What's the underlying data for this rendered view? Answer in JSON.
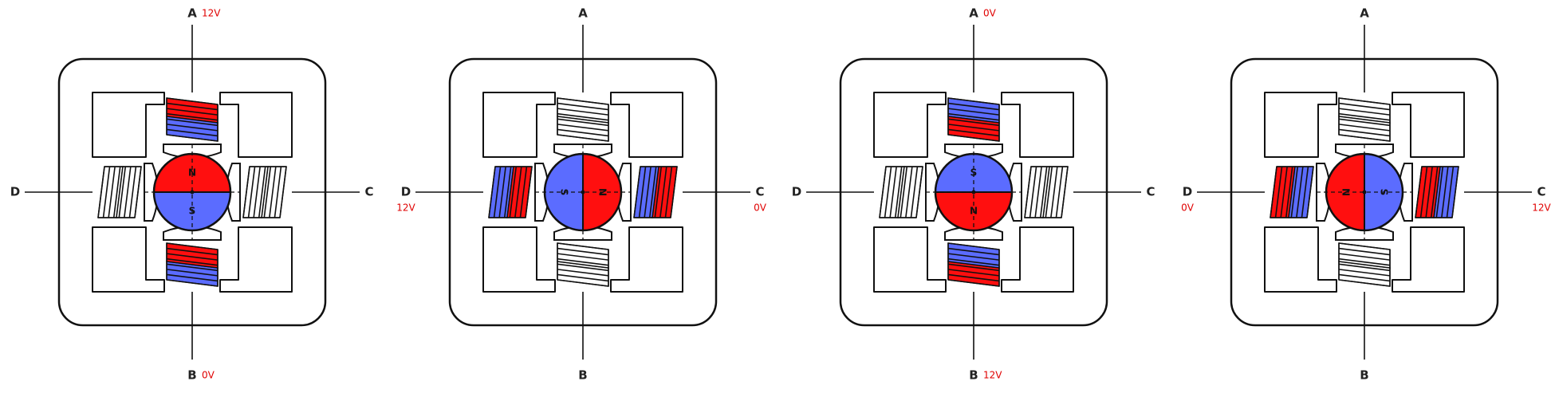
{
  "colors": {
    "energized_north": "#ff0f0f",
    "energized_south": "#5b6cff",
    "outline": "#111111",
    "voltage_text": "#e00000"
  },
  "stages": [
    {
      "terminals": {
        "A": "A",
        "B": "B",
        "C": "C",
        "D": "D"
      },
      "voltages": {
        "A": "12V",
        "B": "0V",
        "C": "",
        "D": ""
      },
      "energized_axis": "vertical",
      "rotor": {
        "orientation": "vertical",
        "red_side": "top",
        "red_pole_label": "N",
        "blue_pole_label": "S"
      },
      "coils": {
        "top": "red-outer",
        "bottom": "blue-outer",
        "left": "plain",
        "right": "plain"
      }
    },
    {
      "terminals": {
        "A": "A",
        "B": "B",
        "C": "C",
        "D": "D"
      },
      "voltages": {
        "A": "",
        "B": "",
        "C": "0V",
        "D": "12V"
      },
      "energized_axis": "horizontal",
      "rotor": {
        "orientation": "horizontal",
        "red_side": "right",
        "red_pole_label": "N",
        "blue_pole_label": "S"
      },
      "coils": {
        "top": "plain",
        "bottom": "plain",
        "left": "red-inner",
        "right": "red-outer"
      }
    },
    {
      "terminals": {
        "A": "A",
        "B": "B",
        "C": "C",
        "D": "D"
      },
      "voltages": {
        "A": "0V",
        "B": "12V",
        "C": "",
        "D": ""
      },
      "energized_axis": "vertical",
      "rotor": {
        "orientation": "vertical",
        "red_side": "bottom",
        "red_pole_label": "N",
        "blue_pole_label": "S"
      },
      "coils": {
        "top": "blue-outer",
        "bottom": "red-outer",
        "left": "plain",
        "right": "plain"
      }
    },
    {
      "terminals": {
        "A": "A",
        "B": "B",
        "C": "C",
        "D": "D"
      },
      "voltages": {
        "A": "",
        "B": "",
        "C": "12V",
        "D": "0V"
      },
      "energized_axis": "horizontal",
      "rotor": {
        "orientation": "horizontal",
        "red_side": "left",
        "red_pole_label": "N",
        "blue_pole_label": "S"
      },
      "coils": {
        "top": "plain",
        "bottom": "plain",
        "left": "blue-inner",
        "right": "blue-outer"
      }
    }
  ]
}
